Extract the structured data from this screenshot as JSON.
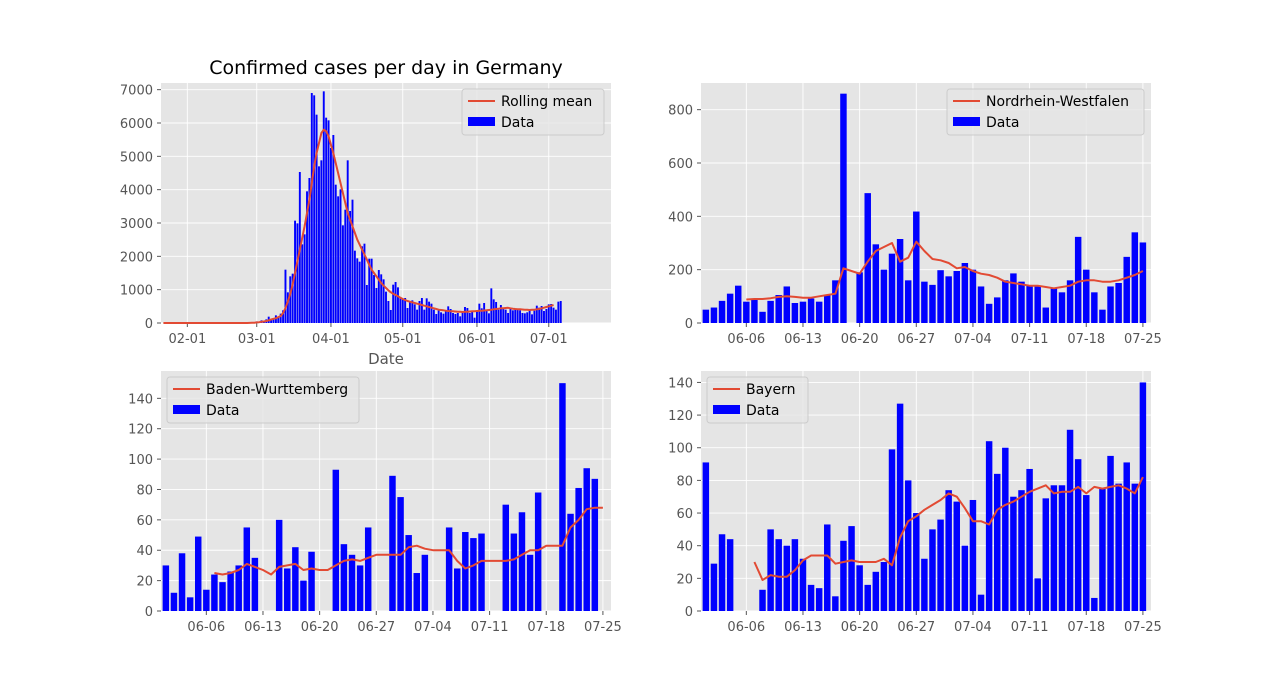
{
  "colors": {
    "bar": "#0000ff",
    "line": "#e24a33",
    "panel_bg": "#e5e5e5",
    "grid": "#ffffff",
    "tick_text": "#555555"
  },
  "chart_data": [
    {
      "type": "bar",
      "title": "Confirmed cases per day in Germany",
      "xlabel": "Date",
      "ylabel": "",
      "x_start": "2020-01-22",
      "xticks": [
        "02-01",
        "03-01",
        "04-01",
        "05-01",
        "06-01",
        "07-01"
      ],
      "yticks": [
        0,
        1000,
        2000,
        3000,
        4000,
        5000,
        6000,
        7000
      ],
      "ylim": [
        0,
        7200
      ],
      "grid": true,
      "legend_position": "top-right",
      "legend": [
        "Rolling mean",
        "Data"
      ],
      "series": [
        {
          "name": "Data",
          "values": [
            0,
            0,
            0,
            0,
            0,
            0,
            1,
            3,
            0,
            0,
            1,
            0,
            0,
            0,
            0,
            0,
            0,
            0,
            0,
            1,
            0,
            0,
            0,
            0,
            0,
            0,
            0,
            0,
            0,
            0,
            0,
            0,
            0,
            0,
            0,
            0,
            2,
            14,
            26,
            48,
            35,
            80,
            60,
            110,
            190,
            120,
            140,
            230,
            160,
            280,
            380,
            1600,
            920,
            1400,
            1480,
            3070,
            2990,
            4530,
            2360,
            2660,
            3950,
            4350,
            6900,
            6830,
            6250,
            4700,
            4880,
            6950,
            6160,
            6080,
            5250,
            5640,
            4150,
            3800,
            4010,
            2930,
            3400,
            4880,
            3360,
            3700,
            2170,
            1940,
            1840,
            2300,
            2380,
            1140,
            1930,
            1930,
            1440,
            1050,
            1590,
            1460,
            1310,
            940,
            660,
            390,
            1150,
            1230,
            1070,
            760,
            730,
            750,
            450,
            620,
            680,
            560,
            400,
            660,
            750,
            400,
            740,
            640,
            580,
            400,
            270,
            420,
            320,
            280,
            380,
            500,
            420,
            300,
            270,
            300,
            200,
            330,
            480,
            450,
            300,
            370,
            160,
            350,
            580,
            440,
            600,
            360,
            290,
            1040,
            710,
            630,
            400,
            540,
            420,
            400,
            300,
            440,
            380,
            400,
            390,
            380,
            300,
            290,
            320,
            380,
            260,
            370,
            520,
            460,
            510,
            360,
            420,
            560,
            570,
            460,
            400,
            640,
            660
          ]
        },
        {
          "name": "Rolling mean",
          "values": [
            0,
            0,
            0,
            0,
            0,
            0,
            0,
            0,
            0,
            0,
            0,
            0,
            0,
            0,
            0,
            0,
            0,
            0,
            0,
            0,
            0,
            0,
            0,
            0,
            0,
            0,
            0,
            0,
            0,
            0,
            0,
            0,
            0,
            0,
            0,
            0,
            2,
            5,
            10,
            18,
            25,
            35,
            45,
            60,
            80,
            105,
            125,
            145,
            175,
            210,
            300,
            450,
            650,
            880,
            1150,
            1500,
            1850,
            2200,
            2550,
            2900,
            3300,
            3700,
            4200,
            4700,
            5100,
            5400,
            5700,
            5800,
            5750,
            5600,
            5350,
            5100,
            4800,
            4500,
            4200,
            3900,
            3600,
            3300,
            3100,
            2900,
            2700,
            2500,
            2350,
            2200,
            2050,
            1900,
            1750,
            1600,
            1500,
            1400,
            1300,
            1200,
            1120,
            1050,
            980,
            920,
            880,
            840,
            800,
            760,
            720,
            690,
            660,
            640,
            620,
            600,
            580,
            560,
            540,
            520,
            500,
            480,
            460,
            440,
            420,
            400,
            390,
            380,
            370,
            360,
            355,
            350,
            345,
            340,
            335,
            330,
            335,
            340,
            345,
            350,
            355,
            360,
            365,
            370,
            375,
            380,
            390,
            400,
            410,
            420,
            430,
            440,
            445,
            450,
            455,
            440,
            430,
            420,
            415,
            410,
            405,
            400,
            395,
            390,
            395,
            400,
            410,
            420,
            440,
            460,
            480,
            500,
            520,
            540
          ]
        }
      ]
    },
    {
      "type": "bar",
      "title": "",
      "xlabel": "",
      "ylabel": "",
      "x_start": "2020-06-01",
      "xticks": [
        "06-06",
        "06-13",
        "06-20",
        "06-27",
        "07-04",
        "07-11",
        "07-18",
        "07-25"
      ],
      "yticks": [
        0,
        200,
        400,
        600,
        800
      ],
      "ylim": [
        0,
        900
      ],
      "grid": true,
      "legend_position": "top-right",
      "legend": [
        "Nordrhein-Westfalen",
        "Data"
      ],
      "series": [
        {
          "name": "Data",
          "values": [
            50,
            58,
            83,
            110,
            140,
            80,
            90,
            42,
            83,
            105,
            137,
            75,
            80,
            92,
            80,
            105,
            160,
            860,
            0,
            190,
            487,
            295,
            200,
            260,
            315,
            160,
            418,
            155,
            143,
            198,
            175,
            195,
            225,
            200,
            137,
            72,
            96,
            160,
            186,
            155,
            140,
            140,
            58,
            130,
            115,
            160,
            323,
            200,
            115,
            50,
            137,
            150,
            248,
            340,
            302
          ]
        },
        {
          "name": "Nordrhein-Westfalen",
          "values": [
            null,
            null,
            null,
            null,
            null,
            88,
            90,
            90,
            93,
            98,
            100,
            98,
            95,
            95,
            100,
            105,
            110,
            205,
            195,
            185,
            230,
            270,
            285,
            300,
            230,
            245,
            305,
            270,
            240,
            235,
            225,
            205,
            210,
            195,
            185,
            180,
            170,
            155,
            150,
            145,
            140,
            140,
            135,
            130,
            135,
            140,
            155,
            160,
            160,
            155,
            155,
            160,
            170,
            180,
            195
          ]
        }
      ]
    },
    {
      "type": "bar",
      "title": "",
      "xlabel": "",
      "ylabel": "",
      "x_start": "2020-06-01",
      "xticks": [
        "06-06",
        "06-13",
        "06-20",
        "06-27",
        "07-04",
        "07-11",
        "07-18",
        "07-25"
      ],
      "yticks": [
        0,
        20,
        40,
        60,
        80,
        100,
        120,
        140
      ],
      "ylim": [
        0,
        158
      ],
      "grid": true,
      "legend_position": "top-left",
      "legend": [
        "Baden-Wurttemberg",
        "Data"
      ],
      "series": [
        {
          "name": "Data",
          "values": [
            30,
            12,
            38,
            9,
            49,
            14,
            24,
            19,
            26,
            30,
            55,
            35,
            0,
            0,
            60,
            28,
            42,
            20,
            39,
            0,
            0,
            93,
            44,
            37,
            30,
            55,
            0,
            0,
            89,
            75,
            50,
            25,
            37,
            0,
            0,
            55,
            28,
            52,
            48,
            51,
            0,
            0,
            70,
            51,
            65,
            37,
            78,
            0,
            0,
            150,
            64,
            81,
            94,
            87,
            0
          ]
        },
        {
          "name": "Baden-Wurttemberg",
          "values": [
            null,
            null,
            null,
            null,
            null,
            null,
            25,
            24,
            25,
            27,
            31,
            29,
            27,
            24,
            29,
            30,
            31,
            27,
            28,
            27,
            27,
            30,
            33,
            34,
            33,
            35,
            37,
            37,
            37,
            37,
            42,
            43,
            41,
            40,
            40,
            40,
            33,
            28,
            30,
            33,
            33,
            33,
            33,
            34,
            37,
            40,
            40,
            43,
            43,
            43,
            55,
            60,
            67,
            68,
            68
          ]
        }
      ]
    },
    {
      "type": "bar",
      "title": "",
      "xlabel": "",
      "ylabel": "",
      "x_start": "2020-06-01",
      "xticks": [
        "06-06",
        "06-13",
        "06-20",
        "06-27",
        "07-04",
        "07-11",
        "07-18",
        "07-25"
      ],
      "yticks": [
        0,
        20,
        40,
        60,
        80,
        100,
        120,
        140
      ],
      "ylim": [
        0,
        147
      ],
      "grid": true,
      "legend_position": "top-left",
      "legend": [
        "Bayern",
        "Data"
      ],
      "series": [
        {
          "name": "Data",
          "values": [
            91,
            29,
            47,
            44,
            0,
            0,
            0,
            13,
            50,
            44,
            40,
            44,
            32,
            16,
            14,
            53,
            9,
            43,
            52,
            28,
            16,
            24,
            30,
            99,
            127,
            80,
            60,
            32,
            50,
            56,
            74,
            67,
            40,
            68,
            10,
            104,
            84,
            100,
            70,
            74,
            87,
            20,
            69,
            77,
            77,
            111,
            93,
            71,
            8,
            75,
            95,
            78,
            91,
            78,
            140
          ]
        },
        {
          "name": "Bayern",
          "values": [
            null,
            null,
            null,
            null,
            null,
            null,
            30,
            19,
            22,
            21,
            21,
            25,
            31,
            34,
            34,
            34,
            29,
            30,
            31,
            30,
            30,
            30,
            32,
            28,
            45,
            55,
            58,
            62,
            65,
            68,
            72,
            70,
            63,
            55,
            55,
            53,
            62,
            65,
            67,
            70,
            73,
            75,
            77,
            72,
            73,
            73,
            76,
            72,
            76,
            75,
            76,
            77,
            75,
            72,
            82
          ]
        }
      ]
    }
  ]
}
